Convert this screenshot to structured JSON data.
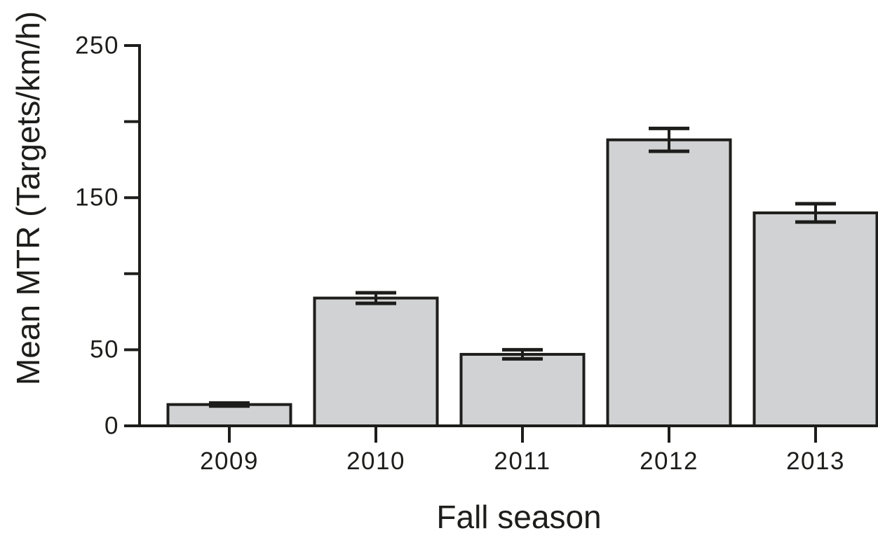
{
  "figure": {
    "background": "#ffffff"
  },
  "chart_data": {
    "type": "bar",
    "title": "",
    "xlabel": "Fall season",
    "ylabel": "Mean MTR (Targets/km/h)",
    "categories": [
      "2009",
      "2010",
      "2011",
      "2012",
      "2013"
    ],
    "values": [
      14,
      84,
      47,
      188,
      140
    ],
    "error_bars": [
      1,
      3.5,
      3,
      7.5,
      6
    ],
    "ylim": [
      0,
      250
    ],
    "y_ticks": [
      {
        "value": 0,
        "label": "0"
      },
      {
        "value": 50,
        "label": "50"
      },
      {
        "value": 100,
        "label": ""
      },
      {
        "value": 150,
        "label": "150"
      },
      {
        "value": 200,
        "label": ""
      },
      {
        "value": 250,
        "label": "250"
      }
    ],
    "grid": false,
    "legend": null,
    "bar_fill": "#d1d2d3",
    "axis_color": "#1d1d1b"
  }
}
